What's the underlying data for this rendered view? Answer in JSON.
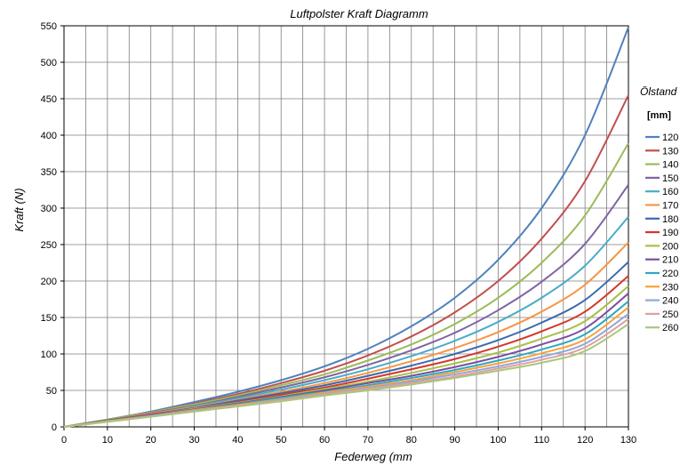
{
  "chart_data": {
    "type": "line",
    "title": "Luftpolster Kraft Diagramm",
    "xlabel": "Federweg (mm",
    "ylabel": "Kraft (N)",
    "xlim": [
      0,
      130
    ],
    "ylim": [
      0,
      550
    ],
    "xticks": [
      0,
      10,
      20,
      30,
      40,
      50,
      60,
      70,
      80,
      90,
      100,
      110,
      120,
      130
    ],
    "yticks": [
      0,
      50,
      100,
      150,
      200,
      250,
      300,
      350,
      400,
      450,
      500,
      550
    ],
    "grid": true,
    "legend": {
      "title": "Ölstand",
      "subtitle": "[mm]",
      "placement": "right"
    },
    "x": [
      0,
      10,
      20,
      30,
      40,
      50,
      60,
      70,
      80,
      90,
      100,
      110,
      120,
      130
    ],
    "series": [
      {
        "name": "120",
        "color": "#4f81bd",
        "values": [
          0,
          10,
          21,
          34,
          48,
          64,
          83,
          107,
          138,
          177,
          229,
          300,
          400,
          548
        ]
      },
      {
        "name": "130",
        "color": "#c0504d",
        "values": [
          0,
          10,
          20,
          32,
          45,
          60,
          77,
          98,
          124,
          157,
          200,
          258,
          337,
          455
        ]
      },
      {
        "name": "140",
        "color": "#9bbb59",
        "values": [
          0,
          10,
          20,
          31,
          43,
          57,
          72,
          91,
          113,
          141,
          177,
          225,
          290,
          389
        ]
      },
      {
        "name": "150",
        "color": "#8064a2",
        "values": [
          0,
          9,
          19,
          29,
          41,
          54,
          68,
          85,
          105,
          129,
          160,
          199,
          251,
          332
        ]
      },
      {
        "name": "160",
        "color": "#4bacc6",
        "values": [
          0,
          9,
          18,
          28,
          39,
          51,
          64,
          79,
          97,
          118,
          144,
          177,
          221,
          288
        ]
      },
      {
        "name": "170",
        "color": "#f79646",
        "values": [
          0,
          9,
          18,
          27,
          37,
          48,
          60,
          74,
          90,
          108,
          130,
          158,
          195,
          253
        ]
      },
      {
        "name": "180",
        "color": "#3a6aaf",
        "values": [
          0,
          9,
          17,
          26,
          36,
          46,
          57,
          70,
          84,
          100,
          119,
          143,
          174,
          226
        ]
      },
      {
        "name": "190",
        "color": "#d0392b",
        "values": [
          0,
          8,
          17,
          25,
          34,
          44,
          54,
          66,
          79,
          93,
          110,
          131,
          158,
          207
        ]
      },
      {
        "name": "200",
        "color": "#a6c04a",
        "values": [
          0,
          8,
          16,
          25,
          33,
          42,
          52,
          62,
          74,
          87,
          102,
          121,
          145,
          193
        ]
      },
      {
        "name": "210",
        "color": "#7a4fa0",
        "values": [
          0,
          8,
          16,
          24,
          32,
          41,
          50,
          60,
          70,
          82,
          96,
          113,
          135,
          183
        ]
      },
      {
        "name": "220",
        "color": "#2fa8c0",
        "values": [
          0,
          8,
          15,
          23,
          31,
          40,
          48,
          57,
          67,
          78,
          91,
          106,
          127,
          172
        ]
      },
      {
        "name": "230",
        "color": "#f7a13b",
        "values": [
          0,
          8,
          15,
          23,
          30,
          38,
          47,
          55,
          64,
          75,
          87,
          101,
          120,
          164
        ]
      },
      {
        "name": "240",
        "color": "#8ea8d8",
        "values": [
          0,
          7,
          15,
          22,
          29,
          37,
          45,
          53,
          62,
          72,
          83,
          96,
          114,
          155
        ]
      },
      {
        "name": "250",
        "color": "#e0a0a0",
        "values": [
          0,
          7,
          14,
          21,
          29,
          36,
          44,
          52,
          60,
          69,
          80,
          92,
          109,
          148
        ]
      },
      {
        "name": "260",
        "color": "#a9c77a",
        "values": [
          0,
          7,
          14,
          21,
          28,
          35,
          43,
          50,
          58,
          67,
          77,
          88,
          104,
          141
        ]
      }
    ]
  }
}
